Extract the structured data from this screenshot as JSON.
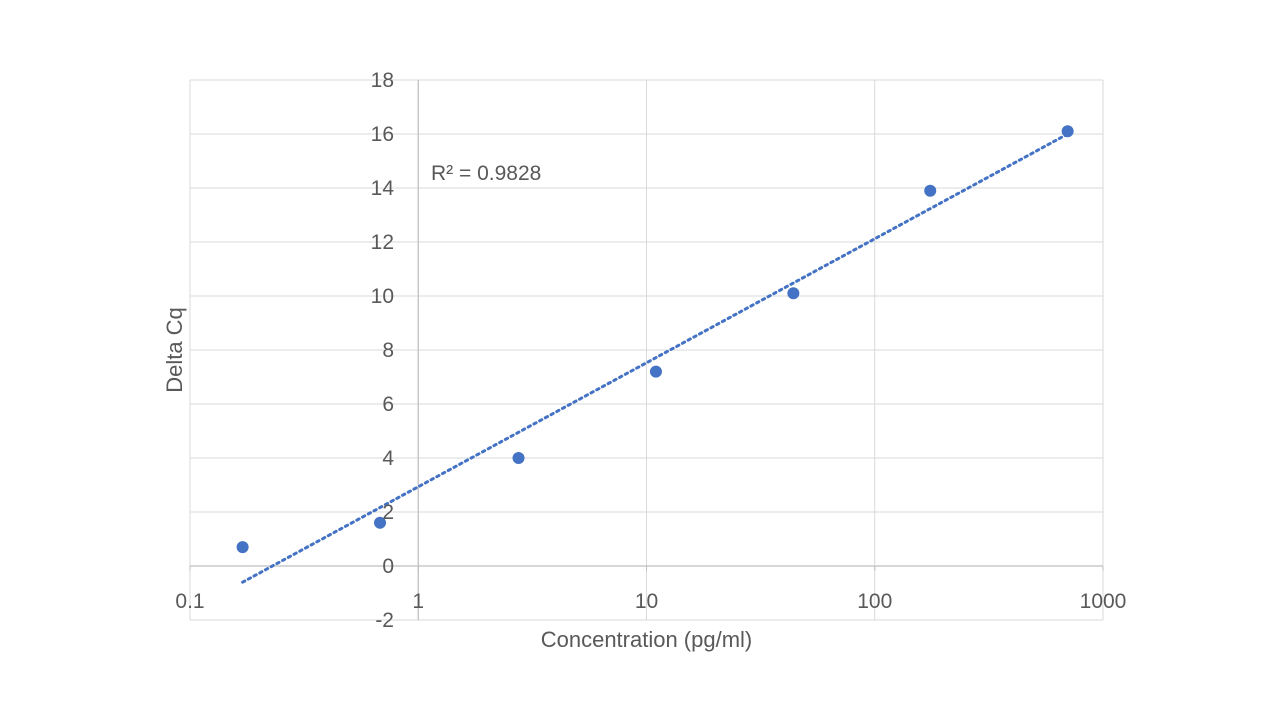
{
  "chart_data": {
    "type": "scatter",
    "title": "",
    "xlabel": "Concentration (pg/ml)",
    "ylabel": "Delta Cq",
    "x_scale": "log",
    "xlim": [
      0.1,
      1000
    ],
    "ylim": [
      -2,
      18
    ],
    "x_ticks": [
      0.1,
      1,
      10,
      100,
      1000
    ],
    "x_tick_labels": [
      "0.1",
      "1",
      "10",
      "100",
      "1000"
    ],
    "y_ticks": [
      -2,
      0,
      2,
      4,
      6,
      8,
      10,
      12,
      14,
      16,
      18
    ],
    "y_tick_labels": [
      "-2",
      "0",
      "2",
      "4",
      "6",
      "8",
      "10",
      "12",
      "14",
      "16",
      "18"
    ],
    "grid": true,
    "legend": "none",
    "marker_color": "#4472C4",
    "trendline_color": "#4472C4",
    "series": [
      {
        "x": [
          0.17,
          0.68,
          2.75,
          11,
          44,
          175,
          700
        ],
        "y": [
          0.7,
          1.6,
          4.0,
          7.2,
          10.1,
          13.9,
          16.1
        ]
      }
    ],
    "trendline": {
      "type": "logarithmic",
      "x_range": [
        0.17,
        700
      ],
      "y_at_x_start": -0.6,
      "y_at_x_end": 16.0
    },
    "annotations": [
      {
        "text": "R² = 0.9828"
      }
    ]
  }
}
